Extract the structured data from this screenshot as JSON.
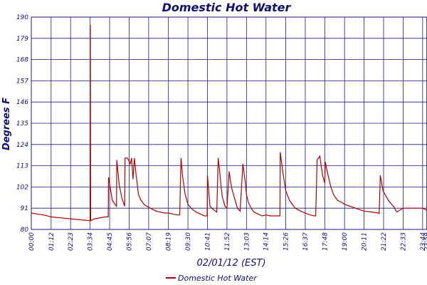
{
  "chart_data": {
    "type": "line",
    "title": "Domestic Hot Water",
    "xlabel": "02/01/12 (EST)",
    "ylabel": "Degrees F",
    "ylim": [
      80,
      190
    ],
    "xlim": [
      "00:00",
      "24:00"
    ],
    "yticks": [
      80,
      91,
      102,
      113,
      124,
      135,
      146,
      157,
      168,
      179,
      190
    ],
    "xticks": [
      "00:00",
      "01:12",
      "02:23",
      "03:34",
      "04:45",
      "05:56",
      "07:07",
      "08:19",
      "09:30",
      "10:41",
      "11:52",
      "13:03",
      "14:14",
      "15:26",
      "16:37",
      "17:48",
      "19:00",
      "20:11",
      "21:22",
      "22:33",
      "23:44",
      "23:59"
    ],
    "grid": true,
    "legend": "bottom",
    "colors": {
      "series": "#b00000",
      "grid": "#1a1a80",
      "text": "#101070"
    },
    "series": [
      {
        "name": "Domestic Hot Water",
        "x": [
          "00:00",
          "00:20",
          "00:45",
          "01:12",
          "01:45",
          "02:23",
          "03:00",
          "03:34",
          "03:35",
          "03:36",
          "03:50",
          "04:30",
          "04:40",
          "04:41",
          "04:55",
          "05:10",
          "05:11",
          "05:20",
          "05:30",
          "05:40",
          "05:41",
          "05:50",
          "06:00",
          "06:05",
          "06:10",
          "06:15",
          "06:20",
          "06:25",
          "06:30",
          "06:40",
          "06:50",
          "07:00",
          "07:07",
          "07:20",
          "07:35",
          "07:50",
          "08:05",
          "08:19",
          "08:35",
          "08:50",
          "09:00",
          "09:05",
          "09:10",
          "09:20",
          "09:30",
          "09:45",
          "10:00",
          "10:15",
          "10:30",
          "10:40",
          "10:41",
          "10:50",
          "11:05",
          "11:15",
          "11:20",
          "11:25",
          "11:30",
          "11:35",
          "11:45",
          "11:52",
          "12:00",
          "12:05",
          "12:10",
          "12:20",
          "12:30",
          "12:40",
          "12:50",
          "13:00",
          "13:03",
          "13:10",
          "13:20",
          "13:30",
          "13:45",
          "14:00",
          "14:14",
          "14:30",
          "14:50",
          "15:05",
          "15:06",
          "15:15",
          "15:26",
          "15:40",
          "16:00",
          "16:20",
          "16:37",
          "16:55",
          "17:10",
          "17:15",
          "17:20",
          "17:30",
          "17:35",
          "17:40",
          "17:48",
          "17:50",
          "18:00",
          "18:10",
          "18:20",
          "18:35",
          "18:50",
          "19:00",
          "19:20",
          "19:40",
          "20:00",
          "20:11",
          "20:40",
          "21:05",
          "21:06",
          "21:10",
          "21:20",
          "21:40",
          "22:00",
          "22:10",
          "22:33",
          "23:00",
          "23:30",
          "23:44",
          "23:59"
        ],
        "y": [
          88.5,
          88,
          87.5,
          86.5,
          86,
          85.5,
          85,
          84.5,
          186,
          84.5,
          85.5,
          86.5,
          86.5,
          107,
          95,
          92,
          116,
          103,
          96,
          92,
          117,
          117,
          114,
          117,
          106,
          117,
          110,
          104,
          98,
          95,
          93,
          92,
          91.5,
          90.5,
          89.5,
          89,
          88.5,
          88.5,
          88,
          87.5,
          87.5,
          117,
          108,
          98,
          93,
          90.5,
          89,
          88,
          87,
          87,
          108,
          92,
          90,
          89,
          117,
          111,
          103,
          97,
          92,
          91,
          110,
          105,
          101,
          96,
          91,
          89.5,
          114,
          103,
          98,
          94,
          91,
          89,
          88,
          87,
          87.5,
          87,
          87,
          87,
          120,
          110,
          100,
          95,
          91,
          89.5,
          88.5,
          87.5,
          87,
          87,
          116,
          118,
          113,
          108,
          104,
          115,
          108,
          102,
          98,
          95,
          94,
          93,
          92,
          91,
          90,
          89.5,
          89,
          88.5,
          88,
          108,
          100,
          95,
          91.5,
          89,
          91,
          91,
          91,
          91,
          90
        ]
      }
    ]
  }
}
